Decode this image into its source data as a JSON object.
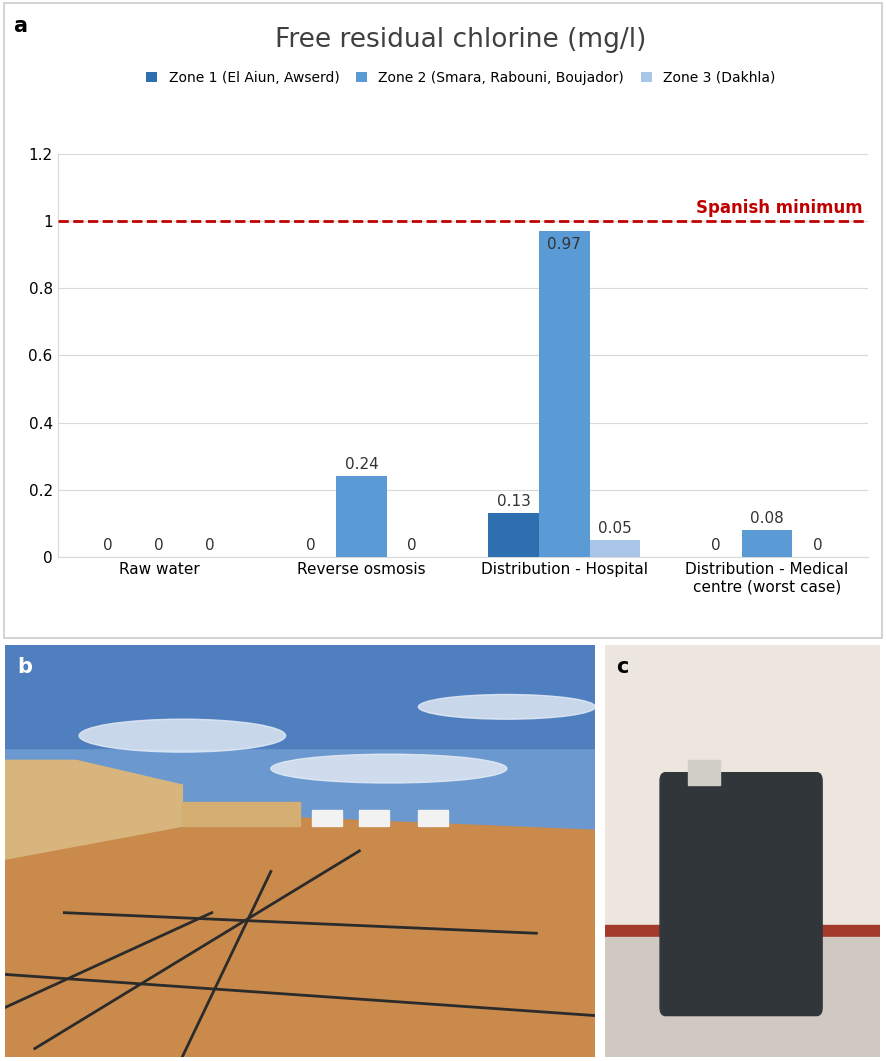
{
  "chart_data": {
    "type": "bar",
    "title": "Free residual chlorine (mg/l)",
    "categories": [
      "Raw water",
      "Reverse osmosis",
      "Distribution - Hospital",
      "Distribution - Medical centre (worst case)"
    ],
    "series": [
      {
        "name": "Zone 1 (El Aiun, Awserd)",
        "color": "#2e6fb0",
        "values": [
          0,
          0,
          0.13,
          0
        ]
      },
      {
        "name": "Zone 2 (Smara, Rabouni, Boujador)",
        "color": "#5b9bd5",
        "values": [
          0,
          0.24,
          0.97,
          0.08
        ]
      },
      {
        "name": "Zone 3 (Dakhla)",
        "color": "#a9c6e8",
        "values": [
          0,
          0,
          0.05,
          0
        ]
      }
    ],
    "ylim": [
      0,
      1.2
    ],
    "yticks": [
      0,
      0.2,
      0.4,
      0.6,
      0.8,
      1,
      1.2
    ],
    "grid": true,
    "data_labels": true,
    "legend": "top",
    "reference_line": {
      "value": 1,
      "label": "Spanish minimum",
      "color": "#c00000"
    }
  },
  "panel_labels": [
    "a",
    "b",
    "c"
  ]
}
